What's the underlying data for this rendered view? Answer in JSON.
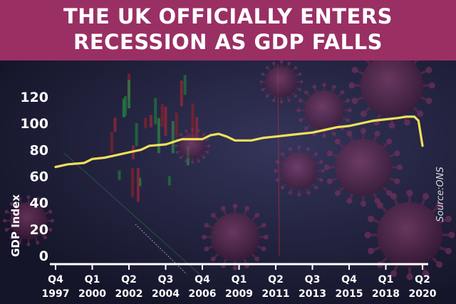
{
  "headline": {
    "line1": "THE UK OFFICIALLY ENTERS",
    "line2": "RECESSION AS GDP FALLS"
  },
  "colors": {
    "banner": "#9a2f64",
    "line": "#f2df5c",
    "text": "#ffffff",
    "virus": "#6e2a52"
  },
  "chart_data": {
    "type": "line",
    "title": "",
    "xlabel": "",
    "ylabel": "GDP Index",
    "source": "Source:ONS",
    "ylim": [
      0,
      120
    ],
    "yticks": [
      "0",
      "20",
      "40",
      "60",
      "80",
      "100",
      "120"
    ],
    "xlim": [
      1997.75,
      2020.25
    ],
    "xticks": [
      {
        "t": 1997.75,
        "quarter": "Q4",
        "year": "1997"
      },
      {
        "t": 2000.0,
        "quarter": "Q1",
        "year": "2000"
      },
      {
        "t": 2002.25,
        "quarter": "Q2",
        "year": "2002"
      },
      {
        "t": 2004.5,
        "quarter": "Q3",
        "year": "2004"
      },
      {
        "t": 2006.75,
        "quarter": "Q4",
        "year": "2006"
      },
      {
        "t": 2009.0,
        "quarter": "Q1",
        "year": "2009"
      },
      {
        "t": 2011.25,
        "quarter": "Q2",
        "year": "2011"
      },
      {
        "t": 2013.5,
        "quarter": "Q3",
        "year": "2013"
      },
      {
        "t": 2015.75,
        "quarter": "Q4",
        "year": "2015"
      },
      {
        "t": 2018.0,
        "quarter": "Q1",
        "year": "2018"
      },
      {
        "t": 2020.25,
        "quarter": "Q2",
        "year": "2020"
      }
    ],
    "series": [
      {
        "name": "GDP Index",
        "x": [
          1997.75,
          1998.5,
          1999.5,
          2000.0,
          2000.75,
          2001.5,
          2002.25,
          2003.0,
          2003.5,
          2004.5,
          2005.5,
          2006.5,
          2006.75,
          2007.25,
          2007.75,
          2008.25,
          2008.75,
          2009.0,
          2009.75,
          2010.5,
          2011.25,
          2012.0,
          2012.75,
          2013.5,
          2014.25,
          2015.0,
          2015.75,
          2016.5,
          2017.25,
          2018.0,
          2018.75,
          2019.25,
          2019.5,
          2019.75,
          2020.0,
          2020.25
        ],
        "y": [
          67,
          69,
          70,
          73,
          74,
          76,
          78,
          80,
          83,
          84,
          88,
          88,
          88,
          91,
          92,
          90,
          87,
          87,
          87,
          89,
          90,
          91,
          92,
          93,
          95,
          97,
          98,
          100,
          102,
          103,
          104,
          105,
          105,
          105,
          102,
          83
        ]
      }
    ]
  }
}
